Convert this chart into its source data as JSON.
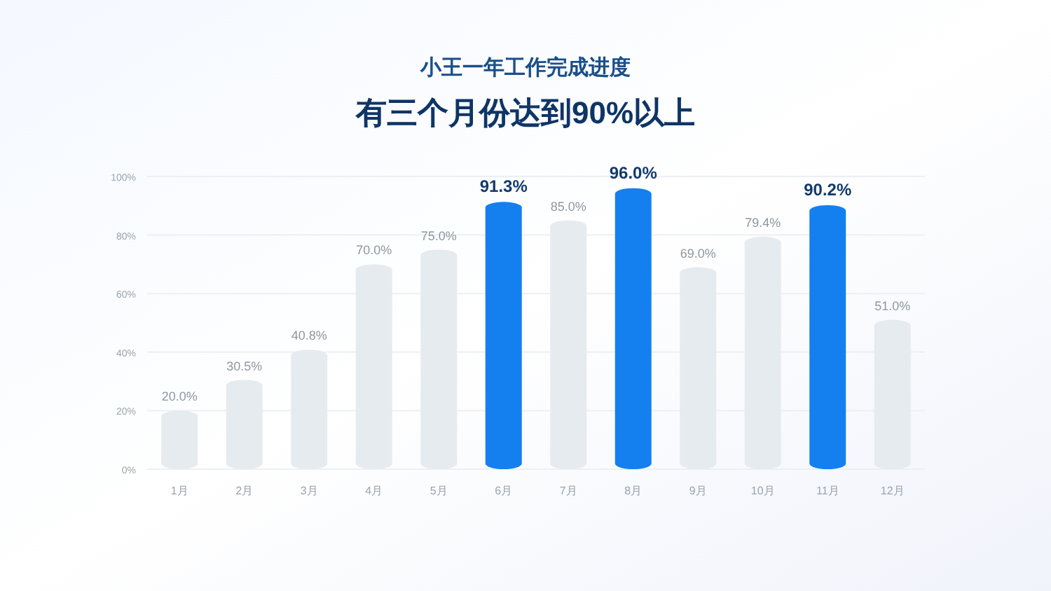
{
  "chart_data": {
    "type": "bar",
    "title": "小王一年工作完成进度",
    "subtitle": "有三个月份达到90%以上",
    "categories": [
      "1月",
      "2月",
      "3月",
      "4月",
      "5月",
      "6月",
      "7月",
      "8月",
      "9月",
      "10月",
      "11月",
      "12月"
    ],
    "values": [
      20.0,
      30.5,
      40.8,
      70.0,
      75.0,
      91.3,
      85.0,
      96.0,
      69.0,
      79.4,
      90.2,
      51.0
    ],
    "colors": [
      "#e6ebef",
      "#e6ebef",
      "#e6ebef",
      "#e6ebef",
      "#e6ebef",
      "#1480f0",
      "#e6ebef",
      "#1480f0",
      "#e6ebef",
      "#e6ebef",
      "#1480f0",
      "#e6ebef"
    ],
    "value_labels": [
      "20.0%",
      "30.5%",
      "40.8%",
      "70.0%",
      "75.0%",
      "91.3%",
      "85.0%",
      "96.0%",
      "69.0%",
      "79.4%",
      "90.2%",
      "51.0%"
    ],
    "ylim": [
      0,
      100
    ],
    "yticks": [
      {
        "value": 0,
        "label": "0%"
      },
      {
        "value": 20,
        "label": "20%"
      },
      {
        "value": 40,
        "label": "40%"
      },
      {
        "value": 60,
        "label": "60%"
      },
      {
        "value": 80,
        "label": "80%"
      },
      {
        "value": 100,
        "label": "100%"
      }
    ],
    "grid": "y"
  }
}
